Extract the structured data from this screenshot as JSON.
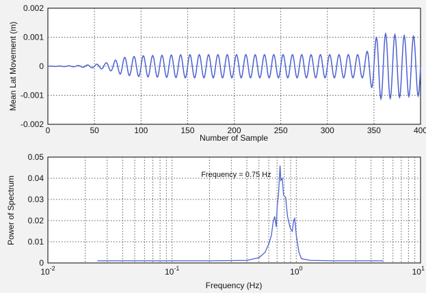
{
  "chart_data": [
    {
      "type": "line",
      "xlabel": "Number of Sample",
      "ylabel": "Mean Lat Movement (m)",
      "xlim": [
        0,
        400
      ],
      "ylim": [
        -0.002,
        0.002
      ],
      "xticks": [
        0,
        50,
        100,
        150,
        200,
        250,
        300,
        350,
        400
      ],
      "xtick_labels": [
        "0",
        "50",
        "100",
        "150",
        "200",
        "250",
        "300",
        "350",
        "400"
      ],
      "yticks": [
        0.002,
        0.001,
        0,
        -0.001,
        -0.002
      ],
      "ytick_labels": [
        "0.002",
        "0.001",
        "0",
        "-0.001",
        "-0.002"
      ],
      "grid": true,
      "color": "#4a5fd0",
      "series": [
        {
          "envelope": {
            "sample": [
              0,
              30,
              40,
              50,
              60,
              70,
              80,
              100,
              150,
              200,
              250,
              300,
              340,
              348,
              355,
              365,
              380,
              400
            ],
            "amplitude": [
              0,
              2e-05,
              4e-05,
              6e-05,
              0.0001,
              0.00018,
              0.0003,
              0.00036,
              0.0004,
              0.0004,
              0.0004,
              0.0004,
              0.0004,
              0.00075,
              0.00112,
              0.00112,
              0.00106,
              0.00102
            ]
          },
          "period_samples": 10,
          "start_phase_sample": 20
        }
      ]
    },
    {
      "type": "line",
      "xscale": "log",
      "xlabel": "Frequency (Hz)",
      "ylabel": "Power of Spectrum",
      "xlim": [
        0.01,
        10
      ],
      "ylim": [
        0,
        0.05
      ],
      "xtick_labels": [
        {
          "base": "10",
          "exp": "-2"
        },
        {
          "base": "10",
          "exp": "-1"
        },
        {
          "base": "10",
          "exp": "0"
        },
        {
          "base": "10",
          "exp": "1"
        }
      ],
      "yticks": [
        0.05,
        0.04,
        0.03,
        0.02,
        0.01,
        0
      ],
      "ytick_labels": [
        "0.05",
        "0.04",
        "0.03",
        "0.02",
        "0.01",
        "0"
      ],
      "grid": true,
      "color": "#4a5fd0",
      "annotation": {
        "text": "Frequency = 0.75 Hz",
        "x": 0.75,
        "y": 0.042
      },
      "series": [
        {
          "x": [
            0.025,
            0.2,
            0.4,
            0.5,
            0.56,
            0.6,
            0.63,
            0.65,
            0.67,
            0.69,
            0.7,
            0.72,
            0.74,
            0.75,
            0.77,
            0.79,
            0.82,
            0.85,
            0.88,
            0.9,
            0.93,
            0.95,
            0.97,
            1.0,
            1.05,
            1.1,
            1.3,
            2.0,
            5.0
          ],
          "y": [
            0.001,
            0.001,
            0.0012,
            0.0025,
            0.005,
            0.009,
            0.013,
            0.019,
            0.022,
            0.017,
            0.026,
            0.033,
            0.046,
            0.039,
            0.04,
            0.032,
            0.031,
            0.022,
            0.018,
            0.016,
            0.015,
            0.02,
            0.021,
            0.013,
            0.005,
            0.002,
            0.0012,
            0.001,
            0.001
          ]
        }
      ]
    }
  ]
}
